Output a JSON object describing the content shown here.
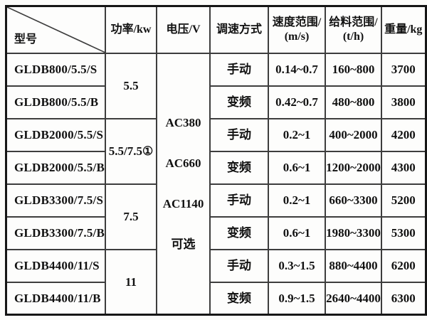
{
  "table": {
    "header": {
      "model": "型号",
      "power": "功率/kw",
      "voltage": "电压/V",
      "mode": "调速方式",
      "speed_l1": "速度范围/",
      "speed_l2": "(m/s)",
      "feed_l1": "给料范围/",
      "feed_l2": "(t/h)",
      "weight": "重量/kg"
    },
    "voltage_options": [
      "AC380",
      "AC660",
      "AC1140",
      "可选"
    ],
    "power_groups": [
      {
        "label": "5.5",
        "span": 2
      },
      {
        "label": "5.5/7.5①",
        "span": 2
      },
      {
        "label": "7.5",
        "span": 2
      },
      {
        "label": "11",
        "span": 2
      }
    ],
    "rows": [
      {
        "model": "GLDB800/5.5/S",
        "mode": "手动",
        "speed": "0.14~0.7",
        "feed": "160~800",
        "weight": "3700"
      },
      {
        "model": "GLDB800/5.5/B",
        "mode": "变频",
        "speed": "0.42~0.7",
        "feed": "480~800",
        "weight": "3800"
      },
      {
        "model": "GLDB2000/5.5/S",
        "mode": "手动",
        "speed": "0.2~1",
        "feed": "400~2000",
        "weight": "4200"
      },
      {
        "model": "GLDB2000/5.5/B",
        "mode": "变频",
        "speed": "0.6~1",
        "feed": "1200~2000",
        "weight": "4300"
      },
      {
        "model": "GLDB3300/7.5/S",
        "mode": "手动",
        "speed": "0.2~1",
        "feed": "660~3300",
        "weight": "5200"
      },
      {
        "model": "GLDB3300/7.5/B",
        "mode": "变频",
        "speed": "0.6~1",
        "feed": "1980~3300",
        "weight": "5300"
      },
      {
        "model": "GLDB4400/11/S",
        "mode": "手动",
        "speed": "0.3~1.5",
        "feed": "880~4400",
        "weight": "6200"
      },
      {
        "model": "GLDB4400/11/B",
        "mode": "变频",
        "speed": "0.9~1.5",
        "feed": "2640~4400",
        "weight": "6300"
      }
    ],
    "colors": {
      "background": "#fcfcfa",
      "cell_background": "#fdfdfc",
      "grid_line": "#3d3d3d",
      "outer_border": "#161616",
      "text": "#111111"
    }
  }
}
